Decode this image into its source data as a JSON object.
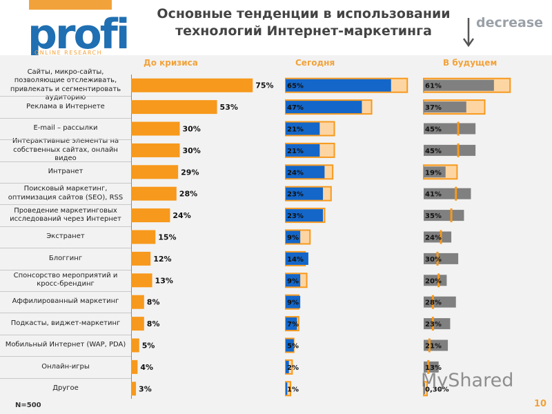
{
  "header": {
    "logo_main": "profi",
    "logo_sub": "ONLINE RESEARCH",
    "title_line1": "Основные тенденции в использовании",
    "title_line2": "технологий Интернет-маркетинга",
    "decrease_label": "decrease"
  },
  "footer": {
    "sample": "N=500",
    "page_number": "10",
    "watermark": "MyShared"
  },
  "colors": {
    "orange": "#f7991c",
    "light_orange": "#fcd5a3",
    "blue": "#1466c8",
    "gray": "#808080",
    "accent": "#f2a23a"
  },
  "chart_data": {
    "type": "bar",
    "orientation": "horizontal",
    "columns": [
      "До кризиса",
      "Сегодня",
      "В будущем"
    ],
    "categories": [
      "Сайты, микро-сайты, позволяющие отслеживать, привлекать и сегментировать аудиторию",
      "Реклама в Интернете",
      "E-mail – рассылки",
      "Интерактивные элементы на собственных сайтах, онлайн видео",
      "Интранет",
      "Поисковый маркетинг, оптимизация сайтов (SEO), RSS",
      "Проведение маркетинговых исследований через Интернет",
      "Экстранет",
      "Блоггинг",
      "Спонсорство мероприятий и кросс-брендинг",
      "Аффилированный маркетинг",
      "Подкасты, виджет-маркетинг",
      "Мобильный Интернет (WAP, PDA)",
      "Онлайн-игры",
      "Другое"
    ],
    "series": [
      {
        "name": "До кризиса",
        "values": [
          75,
          53,
          30,
          30,
          29,
          28,
          24,
          15,
          12,
          13,
          8,
          8,
          5,
          4,
          3
        ],
        "labels": [
          "75%",
          "53%",
          "30%",
          "30%",
          "29%",
          "28%",
          "24%",
          "15%",
          "12%",
          "13%",
          "8%",
          "8%",
          "5%",
          "4%",
          "3%"
        ]
      },
      {
        "name": "Сегодня",
        "values": [
          65,
          47,
          21,
          21,
          24,
          23,
          23,
          9,
          14,
          9,
          9,
          7,
          5,
          2,
          1
        ],
        "labels": [
          "65%",
          "47%",
          "21%",
          "21%",
          "24%",
          "23%",
          "23%",
          "9%",
          "14%",
          "9%",
          "9%",
          "7%",
          "5%",
          "2%",
          "1%"
        ]
      },
      {
        "name": "В будущем",
        "values": [
          61,
          37,
          45,
          45,
          19,
          41,
          35,
          24,
          30,
          20,
          28,
          23,
          21,
          13,
          0.3
        ],
        "labels": [
          "61%",
          "37%",
          "45%",
          "45%",
          "19%",
          "41%",
          "35%",
          "24%",
          "30%",
          "20%",
          "28%",
          "23%",
          "21%",
          "13%",
          "0,30%"
        ]
      }
    ]
  }
}
